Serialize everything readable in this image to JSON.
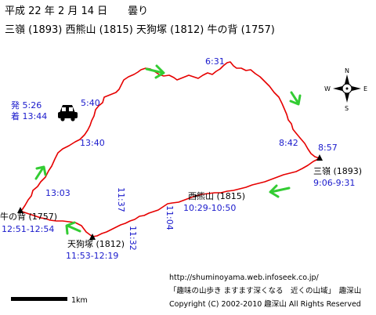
{
  "header": {
    "date_line": "平成 22 年 2 月 14 日　　曇り",
    "peaks_line": "三嶺 (1893)  西熊山 (1815)  天狗塚 (1812)  牛の背 (1757)"
  },
  "start": {
    "depart_label": "発  5:26",
    "arrive_label": "着 13:44",
    "car_icon": "car-icon"
  },
  "peaks": [
    {
      "name": "三嶺 (1893)",
      "time": "9:06-9:31"
    },
    {
      "name": "西熊山 (1815)",
      "time": "10:29-10:50"
    },
    {
      "name": "天狗塚 (1812)",
      "time": "11:53-12:19"
    },
    {
      "name": "牛の背 (1757)",
      "time": "12:51-12:54"
    }
  ],
  "waypoint_times": [
    "5:40",
    "6:31",
    "8:42",
    "8:57",
    "11:04",
    "11:37",
    "11:32",
    "13:03",
    "13:40"
  ],
  "compass": {
    "n": "N",
    "s": "S",
    "e": "E",
    "w": "W"
  },
  "scale": {
    "label": "1km"
  },
  "footer": {
    "url": "http://shuminoyama.web.infoseek.co.jp/",
    "slogan": "「趣味の山歩き ますます深くなる　近くの山域」　趣深山",
    "copyright": "Copyright (C) 2002-2010 趣深山 All Rights Reserved"
  },
  "colors": {
    "route": "#e60000",
    "arrow": "#33cc33",
    "time_text": "#1a1acc",
    "label_text": "#000000"
  }
}
